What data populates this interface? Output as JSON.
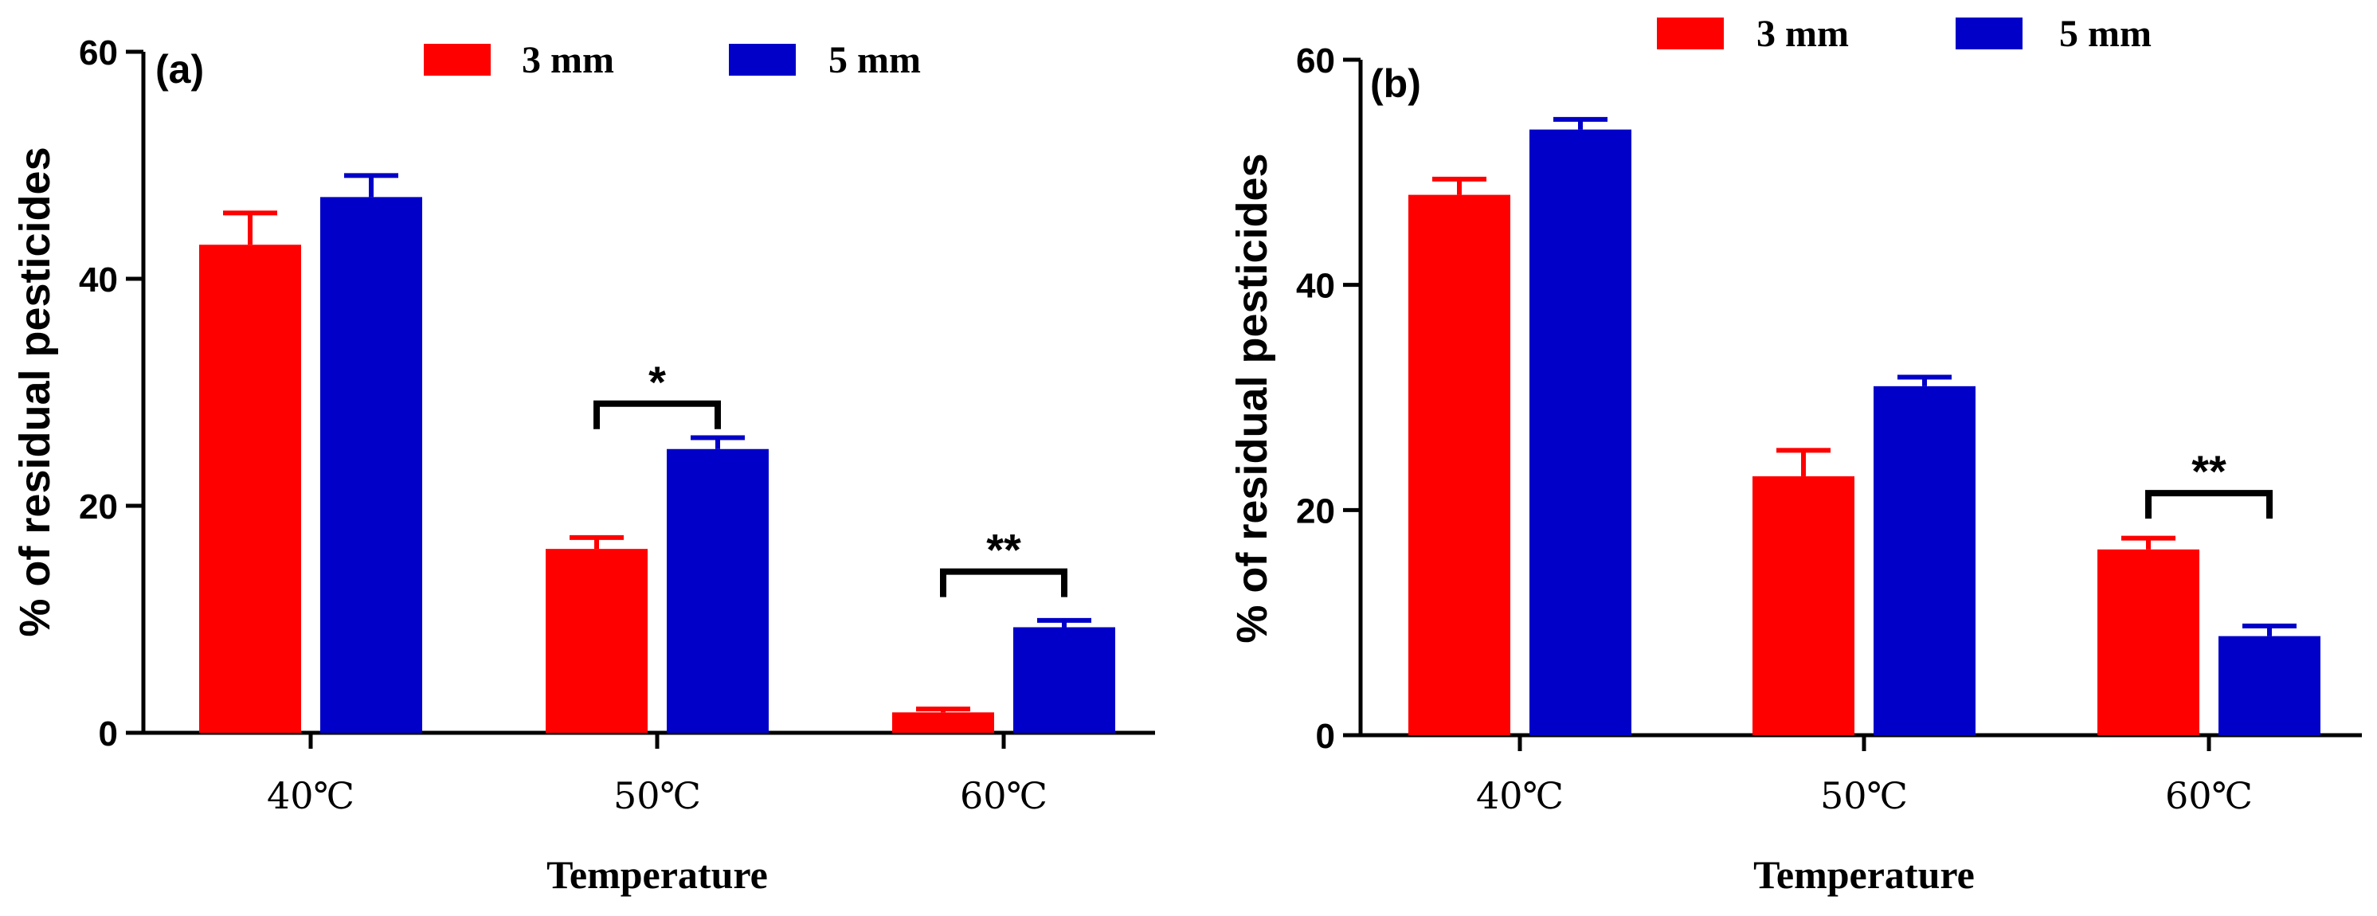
{
  "colors": {
    "series_3mm": "#ff0000",
    "series_5mm": "#0000c8",
    "axis": "#000000"
  },
  "chart_data": [
    {
      "type": "bar",
      "panel_label": "(a)",
      "categories": [
        "40℃",
        "50℃",
        "60℃"
      ],
      "xlabel": "Temperature",
      "ylabel": "% of residual pesticides",
      "ylim": [
        0,
        60
      ],
      "yticks": [
        0,
        20,
        40,
        60
      ],
      "legend_position": "top-center",
      "series": [
        {
          "name": "3 mm",
          "values": [
            43,
            16.2,
            1.8
          ],
          "errors": [
            2.8,
            1.0,
            0.3
          ]
        },
        {
          "name": "5 mm",
          "values": [
            47.2,
            25,
            9.3
          ],
          "errors": [
            1.9,
            1.0,
            0.6
          ]
        }
      ],
      "significance": [
        {
          "category_index": 1,
          "label": "*",
          "bracket_y": 29
        },
        {
          "category_index": 2,
          "label": "**",
          "bracket_y": 14.2
        }
      ]
    },
    {
      "type": "bar",
      "panel_label": "(b)",
      "categories": [
        "40℃",
        "50℃",
        "60℃"
      ],
      "xlabel": "Temperature",
      "ylabel": "% of residual pesticides",
      "ylim": [
        0,
        60
      ],
      "yticks": [
        0,
        20,
        40,
        60
      ],
      "legend_position": "top-center",
      "series": [
        {
          "name": "3 mm",
          "values": [
            48,
            23,
            16.5
          ],
          "errors": [
            1.4,
            2.3,
            1.0
          ]
        },
        {
          "name": "5 mm",
          "values": [
            53.8,
            31,
            8.8
          ],
          "errors": [
            0.9,
            0.8,
            0.9
          ]
        }
      ],
      "significance": [
        {
          "category_index": 2,
          "label": "**",
          "bracket_y": 21.5
        }
      ]
    }
  ]
}
